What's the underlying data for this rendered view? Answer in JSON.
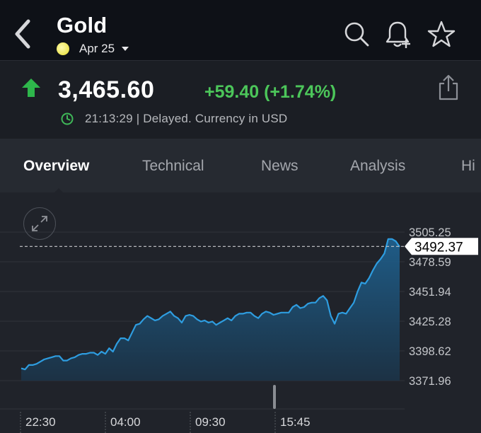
{
  "header": {
    "title": "Gold",
    "date": "Apr 25",
    "icons": [
      "back-chevron-icon",
      "search-icon",
      "add-alert-bell-icon",
      "star-icon"
    ]
  },
  "quote": {
    "price": "3,465.60",
    "change": "+59.40 (+1.74%)",
    "status": "21:13:29 | Delayed. Currency in USD",
    "direction": "up",
    "colors": {
      "up": "#4cc65a",
      "line": "#2e9de0"
    }
  },
  "tabs": [
    {
      "label": "Overview",
      "active": true
    },
    {
      "label": "Technical",
      "active": false
    },
    {
      "label": "News",
      "active": false
    },
    {
      "label": "Analysis",
      "active": false
    },
    {
      "label": "Hi",
      "active": false
    }
  ],
  "chart_data": {
    "type": "area",
    "y_ticks": [
      "3505.25",
      "3478.59",
      "3451.94",
      "3425.28",
      "3398.62",
      "3371.96"
    ],
    "x_ticks": [
      "22:30",
      "04:00",
      "09:30",
      "15:45"
    ],
    "current_value": "3492.37",
    "ylim": [
      3371.96,
      3505.25
    ],
    "series": [
      {
        "values": [
          3383,
          3382,
          3386,
          3386,
          3387,
          3389,
          3391,
          3392,
          3393,
          3394,
          3394,
          3390,
          3390,
          3392,
          3393,
          3395,
          3396,
          3396,
          3397,
          3397,
          3395,
          3398,
          3396,
          3401,
          3398,
          3405,
          3410,
          3410,
          3408,
          3415,
          3422,
          3423,
          3427,
          3430,
          3428,
          3426,
          3427,
          3430,
          3432,
          3434,
          3430,
          3428,
          3424,
          3430,
          3431,
          3430,
          3427,
          3425,
          3426,
          3424,
          3425,
          3422,
          3424,
          3426,
          3428,
          3426,
          3430,
          3432,
          3432,
          3433,
          3433,
          3430,
          3428,
          3432,
          3434,
          3433,
          3431,
          3432,
          3433,
          3433,
          3433,
          3438,
          3440,
          3437,
          3438,
          3441,
          3442,
          3442,
          3446,
          3448,
          3444,
          3430,
          3423,
          3432,
          3433,
          3432,
          3437,
          3442,
          3452,
          3460,
          3459,
          3464,
          3471,
          3477,
          3481,
          3486,
          3499,
          3499,
          3497,
          3492
        ]
      }
    ]
  }
}
